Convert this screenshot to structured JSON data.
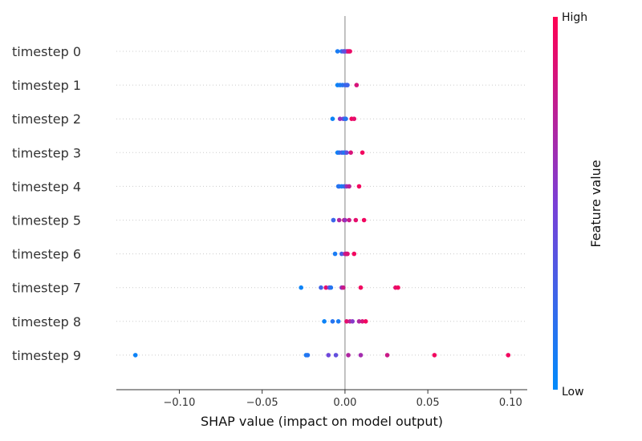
{
  "chart_data": {
    "type": "scatter",
    "title": "",
    "xlabel": "SHAP value (impact on model output)",
    "ylabel": "",
    "xlim": [
      -0.138,
      0.11
    ],
    "xticks": [
      {
        "value": -0.1,
        "label": "−0.10"
      },
      {
        "value": -0.05,
        "label": "−0.05"
      },
      {
        "value": 0.0,
        "label": "0.00"
      },
      {
        "value": 0.05,
        "label": "0.05"
      },
      {
        "value": 0.1,
        "label": "0.10"
      }
    ],
    "grid": false,
    "colorbar": {
      "label": "Feature value",
      "high_label": "High",
      "low_label": "Low",
      "low_color": "#008bfb",
      "mid_color": "#7b3fd6",
      "high_color": "#ff0052"
    },
    "baseline_color": "#999999",
    "categories": [
      "timestep 0",
      "timestep 1",
      "timestep 2",
      "timestep 3",
      "timestep 4",
      "timestep 5",
      "timestep 6",
      "timestep 7",
      "timestep 8",
      "timestep 9"
    ],
    "series": [
      {
        "points": [
          {
            "x": -0.0045,
            "y": 0,
            "v": 0.1
          },
          {
            "x": -0.002,
            "y": 0,
            "v": 0.15
          },
          {
            "x": -0.001,
            "y": 0,
            "v": 0.3
          },
          {
            "x": 0.0,
            "y": 0,
            "v": 0.2
          },
          {
            "x": 0.001,
            "y": 0,
            "v": 0.6
          },
          {
            "x": 0.0015,
            "y": 0,
            "v": 0.75
          },
          {
            "x": 0.002,
            "y": 0,
            "v": 0.85
          },
          {
            "x": 0.003,
            "y": 0,
            "v": 0.95
          },
          {
            "x": 0.0025,
            "y": 0,
            "v": 0.9
          },
          {
            "x": -0.0005,
            "y": 0,
            "v": 0.4
          }
        ]
      },
      {
        "points": [
          {
            "x": -0.0045,
            "y": 1,
            "v": 0.05
          },
          {
            "x": -0.003,
            "y": 1,
            "v": 0.1
          },
          {
            "x": -0.0015,
            "y": 1,
            "v": 0.15
          },
          {
            "x": 0.0,
            "y": 1,
            "v": 0.2
          },
          {
            "x": 0.001,
            "y": 1,
            "v": 0.3
          },
          {
            "x": 0.0015,
            "y": 1,
            "v": 0.25
          },
          {
            "x": 0.007,
            "y": 1,
            "v": 0.85
          }
        ]
      },
      {
        "points": [
          {
            "x": -0.0075,
            "y": 2,
            "v": 0.05
          },
          {
            "x": -0.003,
            "y": 2,
            "v": 0.6
          },
          {
            "x": -0.001,
            "y": 2,
            "v": 0.5
          },
          {
            "x": 0.0,
            "y": 2,
            "v": 0.2
          },
          {
            "x": 0.0005,
            "y": 2,
            "v": 0.15
          },
          {
            "x": 0.004,
            "y": 2,
            "v": 0.95
          },
          {
            "x": 0.0055,
            "y": 2,
            "v": 0.9
          }
        ]
      },
      {
        "points": [
          {
            "x": -0.0045,
            "y": 3,
            "v": 0.05
          },
          {
            "x": -0.0035,
            "y": 3,
            "v": 0.15
          },
          {
            "x": -0.002,
            "y": 3,
            "v": 0.3
          },
          {
            "x": -0.001,
            "y": 3,
            "v": 0.2
          },
          {
            "x": 0.0,
            "y": 3,
            "v": 0.1
          },
          {
            "x": 0.001,
            "y": 3,
            "v": 0.4
          },
          {
            "x": 0.0035,
            "y": 3,
            "v": 0.85
          },
          {
            "x": 0.0105,
            "y": 3,
            "v": 0.95
          }
        ]
      },
      {
        "points": [
          {
            "x": -0.0035,
            "y": 4,
            "v": 0.4
          },
          {
            "x": -0.004,
            "y": 4,
            "v": 0.15
          },
          {
            "x": -0.002,
            "y": 4,
            "v": 0.1
          },
          {
            "x": -0.0005,
            "y": 4,
            "v": 0.2
          },
          {
            "x": 0.001,
            "y": 4,
            "v": 0.6
          },
          {
            "x": 0.0025,
            "y": 4,
            "v": 0.75
          },
          {
            "x": 0.0085,
            "y": 4,
            "v": 0.95
          }
        ]
      },
      {
        "points": [
          {
            "x": -0.007,
            "y": 5,
            "v": 0.05
          },
          {
            "x": -0.007,
            "y": 5,
            "v": 0.25
          },
          {
            "x": -0.0035,
            "y": 5,
            "v": 0.7
          },
          {
            "x": -0.0005,
            "y": 5,
            "v": 0.85
          },
          {
            "x": 0.0,
            "y": 5,
            "v": 0.6
          },
          {
            "x": 0.0025,
            "y": 5,
            "v": 0.8
          },
          {
            "x": 0.0065,
            "y": 5,
            "v": 0.9
          },
          {
            "x": 0.0115,
            "y": 5,
            "v": 0.95
          }
        ]
      },
      {
        "points": [
          {
            "x": -0.006,
            "y": 6,
            "v": 0.1
          },
          {
            "x": -0.002,
            "y": 6,
            "v": 0.3
          },
          {
            "x": 0.0,
            "y": 6,
            "v": 0.65
          },
          {
            "x": 0.0005,
            "y": 6,
            "v": 0.75
          },
          {
            "x": 0.0015,
            "y": 6,
            "v": 0.9
          },
          {
            "x": 0.001,
            "y": 6,
            "v": 0.85
          },
          {
            "x": 0.0055,
            "y": 6,
            "v": 0.95
          }
        ]
      },
      {
        "points": [
          {
            "x": -0.0265,
            "y": 7,
            "v": 0.05
          },
          {
            "x": -0.0145,
            "y": 7,
            "v": 0.25
          },
          {
            "x": -0.0115,
            "y": 7,
            "v": 0.9
          },
          {
            "x": -0.0095,
            "y": 7,
            "v": 0.45
          },
          {
            "x": -0.0085,
            "y": 7,
            "v": 0.15
          },
          {
            "x": -0.002,
            "y": 7,
            "v": 0.6
          },
          {
            "x": -0.001,
            "y": 7,
            "v": 0.8
          },
          {
            "x": 0.0095,
            "y": 7,
            "v": 0.95
          },
          {
            "x": 0.0305,
            "y": 7,
            "v": 0.9
          },
          {
            "x": 0.032,
            "y": 7,
            "v": 0.95
          }
        ]
      },
      {
        "points": [
          {
            "x": -0.0125,
            "y": 8,
            "v": 0.05
          },
          {
            "x": -0.0075,
            "y": 8,
            "v": 0.15
          },
          {
            "x": -0.004,
            "y": 8,
            "v": 0.1
          },
          {
            "x": 0.001,
            "y": 8,
            "v": 0.9
          },
          {
            "x": 0.003,
            "y": 8,
            "v": 0.75
          },
          {
            "x": 0.0045,
            "y": 8,
            "v": 0.55
          },
          {
            "x": 0.0085,
            "y": 8,
            "v": 0.7
          },
          {
            "x": 0.0105,
            "y": 8,
            "v": 0.85
          },
          {
            "x": 0.0125,
            "y": 8,
            "v": 0.95
          }
        ]
      },
      {
        "points": [
          {
            "x": -0.1265,
            "y": 9,
            "v": 0.05
          },
          {
            "x": -0.0235,
            "y": 9,
            "v": 0.1
          },
          {
            "x": -0.0225,
            "y": 9,
            "v": 0.15
          },
          {
            "x": -0.01,
            "y": 9,
            "v": 0.45
          },
          {
            "x": -0.0055,
            "y": 9,
            "v": 0.4
          },
          {
            "x": 0.002,
            "y": 9,
            "v": 0.7
          },
          {
            "x": 0.0095,
            "y": 9,
            "v": 0.65
          },
          {
            "x": 0.0255,
            "y": 9,
            "v": 0.8
          },
          {
            "x": 0.054,
            "y": 9,
            "v": 0.95
          },
          {
            "x": 0.0985,
            "y": 9,
            "v": 0.95
          }
        ]
      }
    ]
  }
}
